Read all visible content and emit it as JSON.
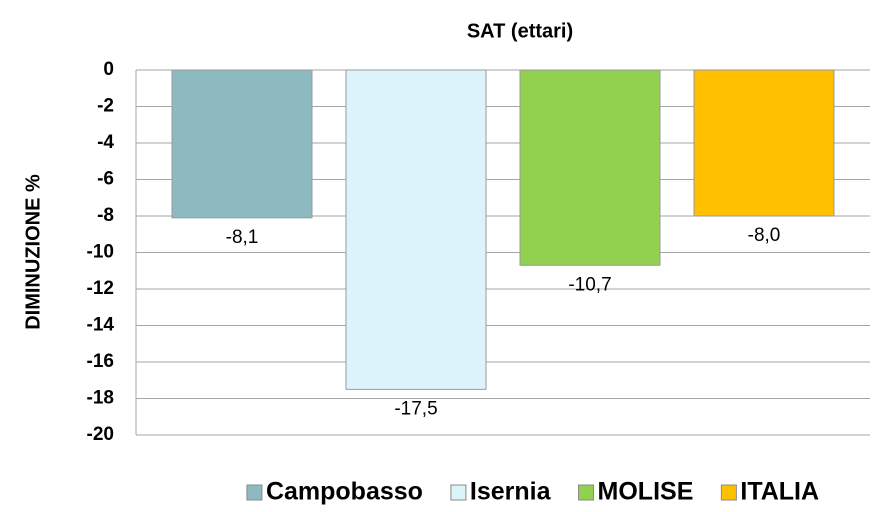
{
  "chart_data": {
    "type": "bar",
    "title": "SAT (ettari)",
    "y_label": "DIMINUZIONE %",
    "series": [
      {
        "name": "Campobasso",
        "color": "#8db9c1",
        "values": [
          -8.1
        ],
        "value_labels": [
          "-8,1"
        ]
      },
      {
        "name": "Isernia",
        "color": "#dcf4f9",
        "values": [
          -17.5
        ],
        "value_labels": [
          "-17,5"
        ]
      },
      {
        "name": "MOLISE",
        "color": "#92d050",
        "values": [
          -10.7
        ],
        "value_labels": [
          "-10,7"
        ]
      },
      {
        "name": "ITALIA",
        "color": "#ffc000",
        "values": [
          -8.0
        ],
        "value_labels": [
          "-8,0"
        ]
      }
    ],
    "ylim": [
      -20,
      0
    ],
    "yticks": [
      0,
      -2,
      -4,
      -6,
      -8,
      -10,
      -12,
      -14,
      -16,
      -18,
      -20
    ],
    "grid": true
  }
}
